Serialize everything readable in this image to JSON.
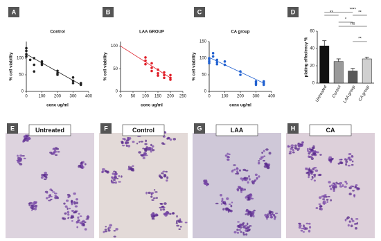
{
  "chart_data": [
    {
      "type": "scatter",
      "panel": "A",
      "title": "Control",
      "x_label": "conc ug/ml",
      "y_label": "% cell viability",
      "xlim": [
        0,
        400
      ],
      "ylim": [
        0,
        150
      ],
      "xticks": [
        0,
        100,
        200,
        300,
        400
      ],
      "yticks": [
        0,
        50,
        100
      ],
      "series": [
        {
          "color": "#222222",
          "x": [
            0,
            0,
            0,
            0,
            25,
            50,
            50,
            50,
            100,
            100,
            100,
            200,
            200,
            200,
            300,
            300,
            300,
            350,
            350
          ],
          "values": [
            130,
            122,
            112,
            105,
            95,
            100,
            80,
            60,
            90,
            85,
            80,
            62,
            55,
            50,
            42,
            32,
            25,
            25,
            20
          ]
        }
      ],
      "trend": {
        "color": "#222222",
        "x": [
          0,
          350
        ],
        "values": [
          112,
          20
        ]
      }
    },
    {
      "type": "scatter",
      "panel": "B",
      "title": "LAA GROUP",
      "x_label": "conc ug/ml",
      "y_label": "% cell viability",
      "xlim": [
        0,
        250
      ],
      "ylim": [
        0,
        110
      ],
      "xticks": [
        0,
        50,
        100,
        150,
        200,
        250
      ],
      "yticks": [
        0,
        50,
        100
      ],
      "series": [
        {
          "color": "#e0202a",
          "x": [
            100,
            100,
            100,
            125,
            125,
            125,
            150,
            150,
            150,
            175,
            175,
            175,
            200,
            200,
            200
          ],
          "values": [
            75,
            68,
            60,
            62,
            52,
            45,
            48,
            40,
            35,
            42,
            36,
            30,
            36,
            30,
            26
          ]
        }
      ],
      "trend": {
        "color": "#e0202a",
        "x": [
          0,
          200
        ],
        "values": [
          100,
          30
        ]
      }
    },
    {
      "type": "scatter",
      "panel": "C",
      "title": "CA  group",
      "x_label": "conc ug/ml",
      "y_label": "% cell viability",
      "xlim": [
        0,
        400
      ],
      "ylim": [
        0,
        150
      ],
      "xticks": [
        0,
        100,
        200,
        300,
        400
      ],
      "yticks": [
        0,
        50,
        100,
        150
      ],
      "series": [
        {
          "color": "#2060d0",
          "x": [
            0,
            0,
            0,
            0,
            25,
            25,
            50,
            50,
            50,
            100,
            100,
            200,
            200,
            300,
            300,
            300,
            350,
            350,
            350
          ],
          "values": [
            100,
            95,
            90,
            85,
            115,
            105,
            95,
            88,
            82,
            90,
            80,
            60,
            50,
            30,
            25,
            20,
            30,
            25,
            20
          ]
        }
      ],
      "trend": {
        "color": "#2060d0",
        "x": [
          0,
          350
        ],
        "values": [
          102,
          25
        ]
      }
    },
    {
      "type": "bar",
      "panel": "D",
      "y_label": "plating effeciency %",
      "categories": [
        "Untreated",
        "Control",
        "LAA group",
        "CA group"
      ],
      "values": [
        43,
        25,
        14,
        28
      ],
      "errors": [
        6,
        3,
        3,
        2
      ],
      "colors": [
        "#111111",
        "#9a9a9a",
        "#5a5a5a",
        "#d0d0d0"
      ],
      "ylim": [
        0,
        60
      ],
      "yticks": [
        0,
        20,
        40,
        60
      ],
      "annotations": [
        "**",
        "****",
        "**",
        "*",
        "ns",
        "**"
      ]
    }
  ],
  "images": [
    {
      "letter": "E",
      "label": "Untreated"
    },
    {
      "letter": "F",
      "label": "Control"
    },
    {
      "letter": "G",
      "label": "LAA"
    },
    {
      "letter": "H",
      "label": "CA"
    }
  ]
}
